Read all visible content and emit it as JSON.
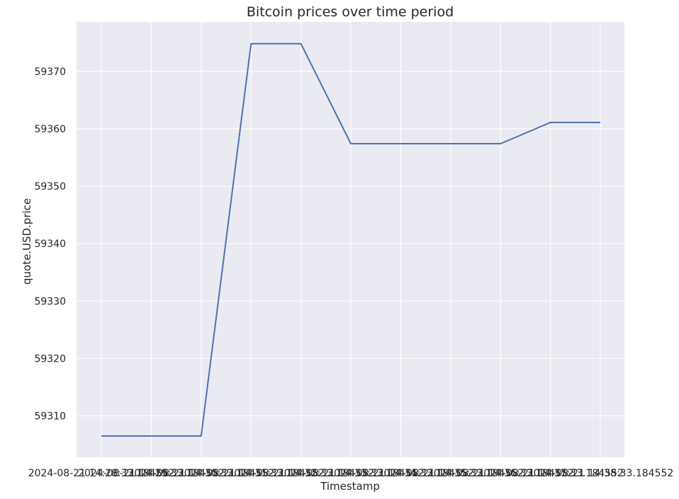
{
  "chart_data": {
    "type": "line",
    "title": "Bitcoin prices over time period",
    "xlabel": "Timestamp",
    "ylabel": "quote.USD.price",
    "x_tick_labels": [
      "2024-08-21 14:28:33.184552",
      "2024-08-21 14:29:33.184552",
      "2024-08-21 14:30:33.184552",
      "2024-08-21 14:31:33.184552",
      "2024-08-21 14:32:33.184552",
      "2024-08-21 14:33:33.184552",
      "2024-08-21 14:34:33.184552",
      "2024-08-21 14:35:33.184552",
      "2024-08-21 14:36:33.184552",
      "2024-08-21 14:37:33.184552",
      "2024-08-21 14:38:33.184552"
    ],
    "y_ticks": [
      59310,
      59320,
      59330,
      59340,
      59350,
      59360,
      59370
    ],
    "ylim": [
      59302.8,
      59378.6
    ],
    "grid": true,
    "series": [
      {
        "color": "#4c72b0",
        "values": [
          59306.5,
          59306.5,
          59306.5,
          59374.8,
          59374.8,
          59357.4,
          59357.4,
          59357.4,
          59357.4,
          59361.1,
          59361.1
        ]
      }
    ],
    "background_color": "#eaeaf2",
    "grid_color": "#ffffff"
  }
}
